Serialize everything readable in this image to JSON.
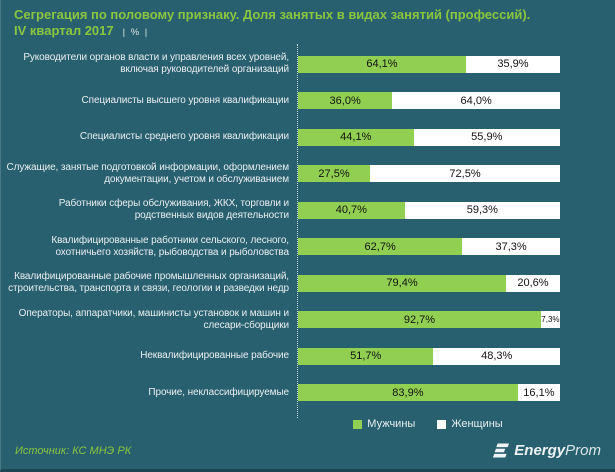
{
  "title": {
    "line1": "Сегрегация по половому признаку. Доля занятых в видах занятий (профессий).",
    "line2": "IV квартал 2017",
    "unit": "| % |"
  },
  "colors": {
    "background": "#28606f",
    "title_green": "#8ac63e",
    "men_green": "#90cf51",
    "women_white": "#ffffff",
    "label_text": "#e9eef0",
    "value_text": "#121212"
  },
  "chart_data": {
    "type": "bar",
    "orientation": "horizontal",
    "stacked": true,
    "xlim": [
      0,
      100
    ],
    "grid": false,
    "legend_position": "bottom",
    "categories": [
      "Руководители органов власти и управления всех уровней, включая руководителей организаций",
      "Специалисты высшего уровня квалификации",
      "Специалисты среднего уровня квалификации",
      "Служащие, занятые подготовкой информации, оформлением документации, учетом и обслуживанием",
      "Работники сферы обслуживания, ЖКХ, торговли и родственных видов деятельности",
      "Квалифицированные работники сельского, лесного, охотничьего хозяйств, рыбоводства и рыболовства",
      "Квалифицированные рабочие промышленных организаций, строительства, транспорта и связи, геологии и разведки недр",
      "Операторы, аппаратчики, машинисты установок и машин и слесари-сборщики",
      "Неквалифицированные рабочие",
      "Прочие, неклассифицируемые"
    ],
    "series": [
      {
        "name": "Мужчины",
        "color": "#90cf51",
        "values": [
          64.1,
          36.0,
          44.1,
          27.5,
          40.7,
          62.7,
          79.4,
          92.7,
          51.7,
          83.9
        ],
        "labels": [
          "64,1%",
          "36,0%",
          "44,1%",
          "27,5%",
          "40,7%",
          "62,7%",
          "79,4%",
          "92,7%",
          "51,7%",
          "83,9%"
        ]
      },
      {
        "name": "Женщины",
        "color": "#ffffff",
        "values": [
          35.9,
          64.0,
          55.9,
          72.5,
          59.3,
          37.3,
          20.6,
          7.3,
          48.3,
          16.1
        ],
        "labels": [
          "35,9%",
          "64,0%",
          "55,9%",
          "72,5%",
          "59,3%",
          "37,3%",
          "20,6%",
          "7,3%",
          "48,3%",
          "16,1%"
        ]
      }
    ]
  },
  "footer": {
    "source": "Источник: КС МНЭ РК",
    "logo": {
      "bold": "Energy",
      "light": "Prom"
    }
  }
}
